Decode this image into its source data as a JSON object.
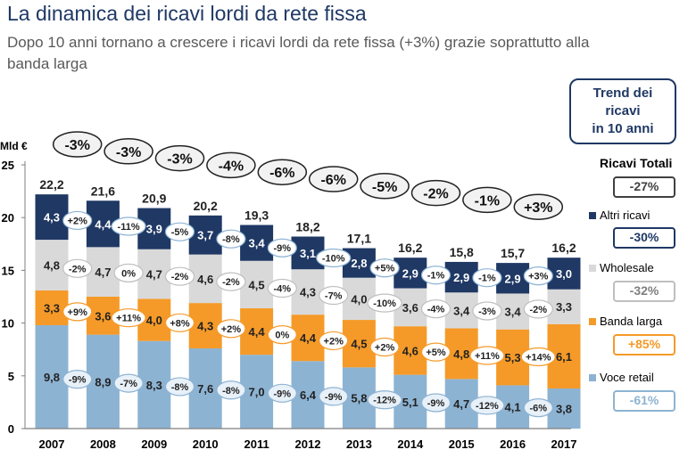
{
  "header": {
    "title": "La dinamica dei ricavi lordi da rete fissa",
    "subtitle": "Dopo 10 anni tornano a crescere i ricavi lordi da rete fissa (+3%) grazie soprattutto alla banda larga"
  },
  "chart_data": {
    "type": "bar",
    "stacked": true,
    "ylabel": "Mld €",
    "ylim": [
      0,
      25
    ],
    "yticks": [
      0,
      5,
      10,
      15,
      20,
      25
    ],
    "categories": [
      "2007",
      "2008",
      "2009",
      "2010",
      "2011",
      "2012",
      "2013",
      "2014",
      "2015",
      "2016",
      "2017"
    ],
    "totals": [
      "22,2",
      "21,6",
      "20,9",
      "20,2",
      "19,3",
      "18,2",
      "17,1",
      "16,2",
      "15,8",
      "15,7",
      "16,2"
    ],
    "total_changes": [
      "-3%",
      "-3%",
      "-3%",
      "-4%",
      "-6%",
      "-6%",
      "-5%",
      "-2%",
      "-1%",
      "+3%"
    ],
    "series": [
      {
        "name": "Voce retail",
        "color": "#8db3d3",
        "values": [
          9.8,
          8.9,
          8.3,
          7.6,
          7.0,
          6.4,
          5.8,
          5.1,
          4.7,
          4.1,
          3.8
        ],
        "labels": [
          "9,8",
          "8,9",
          "8,3",
          "7,6",
          "7,0",
          "6,4",
          "5,8",
          "5,1",
          "4,7",
          "4,1",
          "3,8"
        ],
        "changes": [
          "-9%",
          "-7%",
          "-8%",
          "-8%",
          "-9%",
          "-9%",
          "-12%",
          "-9%",
          "-12%",
          "-6%"
        ]
      },
      {
        "name": "Banda larga",
        "color": "#f59a28",
        "values": [
          3.3,
          3.6,
          4.0,
          4.3,
          4.4,
          4.4,
          4.5,
          4.6,
          4.8,
          5.3,
          6.1
        ],
        "labels": [
          "3,3",
          "3,6",
          "4,0",
          "4,3",
          "4,4",
          "4,4",
          "4,5",
          "4,6",
          "4,8",
          "5,3",
          "6,1"
        ],
        "changes": [
          "+9%",
          "+11%",
          "+8%",
          "+2%",
          "0%",
          "+2%",
          "+2%",
          "+5%",
          "+11%",
          "+14%"
        ]
      },
      {
        "name": "Wholesale",
        "color": "#d9d9d9",
        "values": [
          4.8,
          4.7,
          4.7,
          4.6,
          4.5,
          4.3,
          4.0,
          3.6,
          3.4,
          3.4,
          3.3
        ],
        "labels": [
          "4,8",
          "4,7",
          "4,7",
          "4,6",
          "4,5",
          "4,3",
          "4,0",
          "3,6",
          "3,4",
          "3,4",
          "3,3"
        ],
        "changes": [
          "-2%",
          "0%",
          "-2%",
          "-2%",
          "-4%",
          "-7%",
          "-10%",
          "-4%",
          "-3%",
          "-2%"
        ]
      },
      {
        "name": "Altri ricavi",
        "color": "#1f3864",
        "values": [
          4.3,
          4.4,
          3.9,
          3.7,
          3.4,
          3.1,
          2.8,
          2.9,
          2.9,
          2.9,
          3.0
        ],
        "labels": [
          "4,3",
          "4,4",
          "3,9",
          "3,7",
          "3,4",
          "3,1",
          "2,8",
          "2,9",
          "2,9",
          "2,9",
          "3,0"
        ],
        "changes": [
          "+2%",
          "-11%",
          "-5%",
          "-8%",
          "-9%",
          "-10%",
          "+5%",
          "-1%",
          "-1%",
          "+3%"
        ]
      }
    ]
  },
  "trend_panel": {
    "title_lines": [
      "Trend dei",
      "ricavi",
      "in 10 anni"
    ],
    "items": [
      {
        "label": "Ricavi Totali",
        "value": "-27%",
        "border": "#404040",
        "text": "#404040"
      },
      {
        "label": "Altri ricavi",
        "value": "-30%",
        "border": "#1f3864",
        "text": "#1f3864"
      },
      {
        "label": "Wholesale",
        "value": "-32%",
        "border": "#bfbfbf",
        "text": "#7f7f7f"
      },
      {
        "label": "Banda larga",
        "value": "+85%",
        "border": "#f59a28",
        "text": "#f59a28"
      },
      {
        "label": "Voce retail",
        "value": "-61%",
        "border": "#8db3d3",
        "text": "#8db3d3"
      }
    ]
  }
}
